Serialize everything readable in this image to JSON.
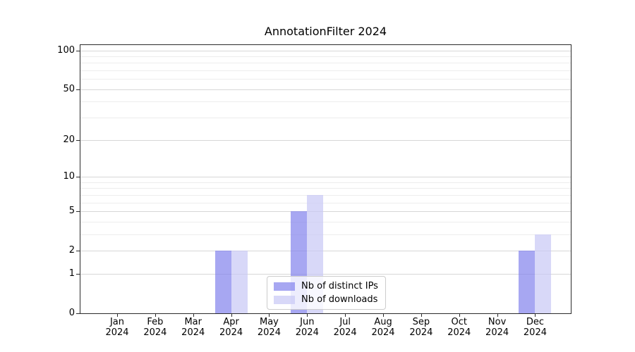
{
  "chart_data": {
    "type": "bar",
    "title": "AnnotationFilter 2024",
    "categories": [
      "Jan",
      "Feb",
      "Mar",
      "Apr",
      "May",
      "Jun",
      "Jul",
      "Aug",
      "Sep",
      "Oct",
      "Nov",
      "Dec"
    ],
    "category_year": "2024",
    "series": [
      {
        "name": "Nb of distinct IPs",
        "color": "rgba(130,130,237,0.7)",
        "values": [
          0,
          0,
          0,
          2,
          0,
          5,
          0,
          0,
          0,
          0,
          0,
          2
        ]
      },
      {
        "name": "Nb of downloads",
        "color": "rgba(199,199,245,0.7)",
        "values": [
          0,
          0,
          0,
          2,
          0,
          7,
          0,
          0,
          0,
          0,
          0,
          3
        ]
      }
    ],
    "y_scale": "log1p",
    "y_ticks": [
      100,
      50,
      20,
      10,
      5,
      2,
      1,
      0
    ],
    "y_minor_gridlines": [
      3,
      4,
      6,
      7,
      8,
      9,
      30,
      40,
      60,
      70,
      80,
      90
    ],
    "ylim": [
      0,
      110
    ],
    "grid": "both",
    "legend_position": "lower-center",
    "colors": {
      "spine": "#2b2b2b",
      "grid_major": "#d7d7d7",
      "grid_minor": "#ededed",
      "text": "#000000",
      "background": "#ffffff"
    }
  }
}
